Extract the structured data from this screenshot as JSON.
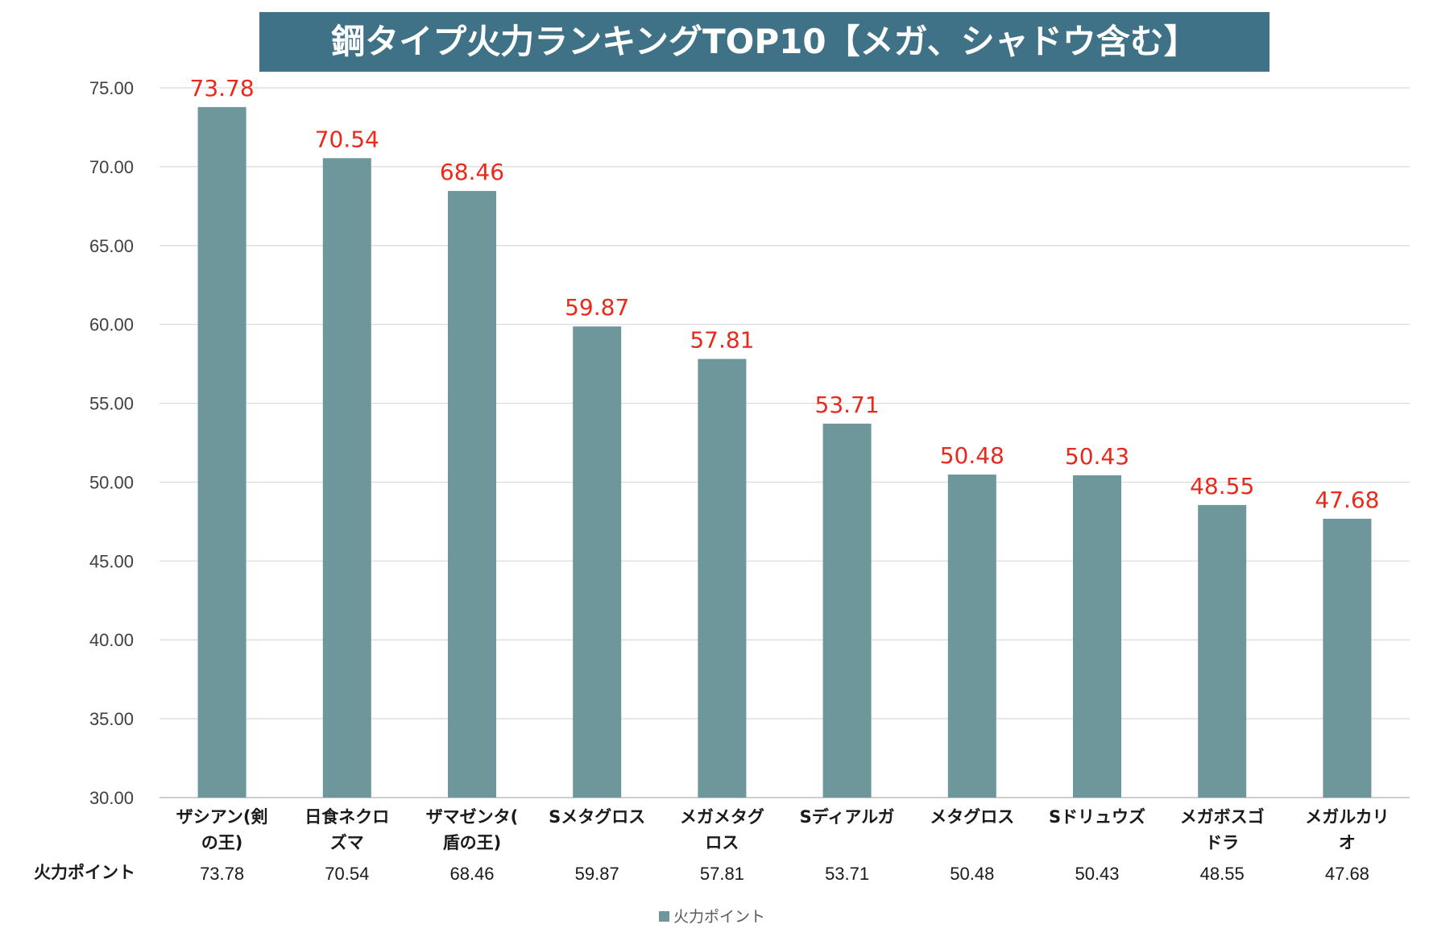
{
  "chart_data": {
    "type": "bar",
    "title": "鋼タイプ火力ランキングTOP10【メガ、シャドウ含む】",
    "categories": [
      [
        "ザシアン(剣",
        "の王)"
      ],
      [
        "日食ネクロ",
        "ズマ"
      ],
      [
        "ザマゼンタ(",
        "盾の王)"
      ],
      [
        "Sメタグロス"
      ],
      [
        "メガメタグ",
        "ロス"
      ],
      [
        "Sディアルガ"
      ],
      [
        "メタグロス"
      ],
      [
        "Sドリュウズ"
      ],
      [
        "メガボスゴ",
        "ドラ"
      ],
      [
        "メガルカリ",
        "オ"
      ]
    ],
    "series": [
      {
        "name": "火力ポイント",
        "values": [
          73.78,
          70.54,
          68.46,
          59.87,
          57.81,
          53.71,
          50.48,
          50.43,
          48.55,
          47.68
        ],
        "labels": [
          "73.78",
          "70.54",
          "68.46",
          "59.87",
          "57.81",
          "53.71",
          "50.48",
          "50.43",
          "48.55",
          "47.68"
        ]
      }
    ],
    "ylim": [
      30,
      75
    ],
    "yticks": [
      "30.00",
      "35.00",
      "40.00",
      "45.00",
      "50.00",
      "55.00",
      "60.00",
      "65.00",
      "70.00",
      "75.00"
    ],
    "grid": true,
    "legend": "bottom-center",
    "data_table": true,
    "colors": {
      "bar": "#6e979b",
      "data_label": "#e8291c",
      "title_bg": "#3f7287",
      "title_text": "#ffffff",
      "grid": "#d9d9d9"
    }
  }
}
